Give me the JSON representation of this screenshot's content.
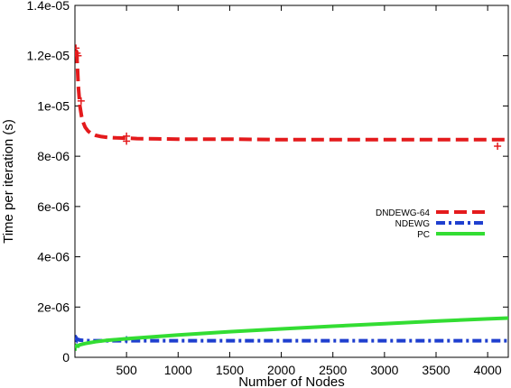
{
  "chart_data": {
    "type": "line",
    "xlabel": "Number of Nodes",
    "ylabel": "Time per iteration (s)",
    "xlim": [
      0,
      4200
    ],
    "ylim": [
      0,
      1.4e-05
    ],
    "grid": false,
    "legend_position": "center-right",
    "x_ticks": [
      {
        "value": 500,
        "label": "500"
      },
      {
        "value": 1000,
        "label": "1000"
      },
      {
        "value": 1500,
        "label": "1500"
      },
      {
        "value": 2000,
        "label": "2000"
      },
      {
        "value": 2500,
        "label": "2500"
      },
      {
        "value": 3000,
        "label": "3000"
      },
      {
        "value": 3500,
        "label": "3500"
      },
      {
        "value": 4000,
        "label": "4000"
      }
    ],
    "y_ticks": [
      {
        "value": 0,
        "label": "0"
      },
      {
        "value": 2e-06,
        "label": "2e-06"
      },
      {
        "value": 4e-06,
        "label": "4e-06"
      },
      {
        "value": 6e-06,
        "label": "6e-06"
      },
      {
        "value": 8e-06,
        "label": "8e-06"
      },
      {
        "value": 1e-05,
        "label": "1e-05"
      },
      {
        "value": 1.2e-05,
        "label": "1.2e-05"
      },
      {
        "value": 1.4e-05,
        "label": "1.4e-05"
      }
    ],
    "series": [
      {
        "name": "DNDEWG-64",
        "color": "#e41a1c",
        "style": "dashed",
        "x": [
          16,
          24,
          32,
          48,
          64,
          80,
          100,
          128,
          160,
          200,
          256,
          320,
          400,
          500,
          600,
          800,
          1000,
          1200,
          1500,
          2000,
          2500,
          3000,
          3500,
          4000,
          4200
        ],
        "y": [
          1.22e-05,
          1.16e-05,
          1.08e-05,
          1e-05,
          9.6e-06,
          9.35e-06,
          9.15e-06,
          9e-06,
          8.9e-06,
          8.83e-06,
          8.78e-06,
          8.75e-06,
          8.73e-06,
          8.72e-06,
          8.7e-06,
          8.69e-06,
          8.68e-06,
          8.68e-06,
          8.68e-06,
          8.66e-06,
          8.66e-06,
          8.66e-06,
          8.66e-06,
          8.66e-06,
          8.66e-06
        ],
        "markers": [
          {
            "x": 10,
            "y": 1.23e-05
          },
          {
            "x": 20,
            "y": 1.21e-05
          },
          {
            "x": 30,
            "y": 1.2e-05
          },
          {
            "x": 60,
            "y": 1.02e-05
          },
          {
            "x": 500,
            "y": 8.6e-06
          },
          {
            "x": 500,
            "y": 8.8e-06
          },
          {
            "x": 4096,
            "y": 8.4e-06
          }
        ]
      },
      {
        "name": "NDEWG",
        "color": "#1f3fcf",
        "style": "dashdot",
        "x": [
          0,
          20,
          40,
          80,
          150,
          300,
          500,
          1000,
          1500,
          2000,
          2500,
          3000,
          3500,
          4000,
          4200
        ],
        "y": [
          7.8e-07,
          7.2e-07,
          6.9e-07,
          6.7e-07,
          6.6e-07,
          6.6e-07,
          6.6e-07,
          6.6e-07,
          6.6e-07,
          6.6e-07,
          6.6e-07,
          6.6e-07,
          6.6e-07,
          6.6e-07,
          6.6e-07
        ],
        "markers": [
          {
            "x": 10,
            "y": 7.5e-07
          },
          {
            "x": 20,
            "y": 7e-07
          },
          {
            "x": 500,
            "y": 7e-07
          }
        ]
      },
      {
        "name": "PC",
        "color": "#33dd33",
        "style": "solid",
        "x": [
          0,
          50,
          100,
          200,
          300,
          500,
          700,
          1000,
          1500,
          2000,
          2500,
          3000,
          3500,
          4000,
          4200
        ],
        "y": [
          4.2e-07,
          5e-07,
          5.5e-07,
          6.2e-07,
          6.7e-07,
          7.4e-07,
          8e-07,
          8.9e-07,
          1.02e-06,
          1.13e-06,
          1.24e-06,
          1.34e-06,
          1.44e-06,
          1.53e-06,
          1.56e-06
        ],
        "markers": [
          {
            "x": 10,
            "y": 4e-07
          }
        ]
      }
    ]
  }
}
